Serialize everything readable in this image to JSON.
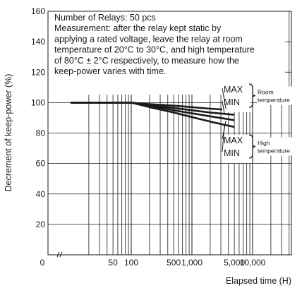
{
  "chart_data": {
    "type": "line",
    "ylabel": "Decrement of keep-power (%)",
    "xlabel": "Elapsed time (H)",
    "x_scale": "log",
    "xlim": [
      10,
      50000
    ],
    "ylim": [
      0,
      160
    ],
    "x_zero_label": "0",
    "x_ticks": [
      {
        "value": 50,
        "label": "50"
      },
      {
        "value": 100,
        "label": "100"
      },
      {
        "value": 500,
        "label": "500"
      },
      {
        "value": 1000,
        "label": "1,000"
      },
      {
        "value": 5000,
        "label": "5,000"
      },
      {
        "value": 10000,
        "label": "10,000"
      }
    ],
    "y_ticks": [
      20,
      40,
      60,
      80,
      100,
      120,
      140,
      160
    ],
    "grid": true,
    "annotation_lines": [
      "Number of Relays: 50 pcs",
      "Measurement: after the relay kept static by",
      "applying a rated voltage, leave the relay at room",
      "temperature of 20°C to 30°C, and high temperature",
      "of 80°C ± 2°C respectively, to measure how the",
      "keep-power varies with time."
    ],
    "series": [
      {
        "x": [
          10,
          100,
          200,
          500,
          1000,
          2000,
          5000
        ],
        "y": [
          100,
          100,
          99,
          98,
          97,
          96,
          95
        ]
      },
      {
        "x": [
          10,
          100,
          200,
          500,
          1000,
          2000,
          5000
        ],
        "y": [
          100,
          100,
          98.5,
          96.5,
          95,
          93.5,
          92
        ]
      },
      {
        "x": [
          10,
          100,
          200,
          500,
          1000,
          2000,
          5000
        ],
        "y": [
          100,
          100,
          98,
          95,
          93,
          91,
          88.5
        ]
      },
      {
        "x": [
          10,
          100,
          200,
          500,
          1000,
          2000,
          5000
        ],
        "y": [
          100,
          100,
          97,
          93.5,
          90.5,
          87.5,
          84
        ]
      }
    ],
    "groups": [
      {
        "max_label": "MAX",
        "min_label": "MIN",
        "name_lines": [
          "Room",
          "temperature"
        ]
      },
      {
        "max_label": "MAX",
        "min_label": "MIN",
        "name_lines": [
          "High",
          "temperature"
        ]
      }
    ],
    "colors": {
      "line": "#1a1a1a",
      "grid": "#1a1a1a",
      "background": "#ffffff"
    }
  }
}
